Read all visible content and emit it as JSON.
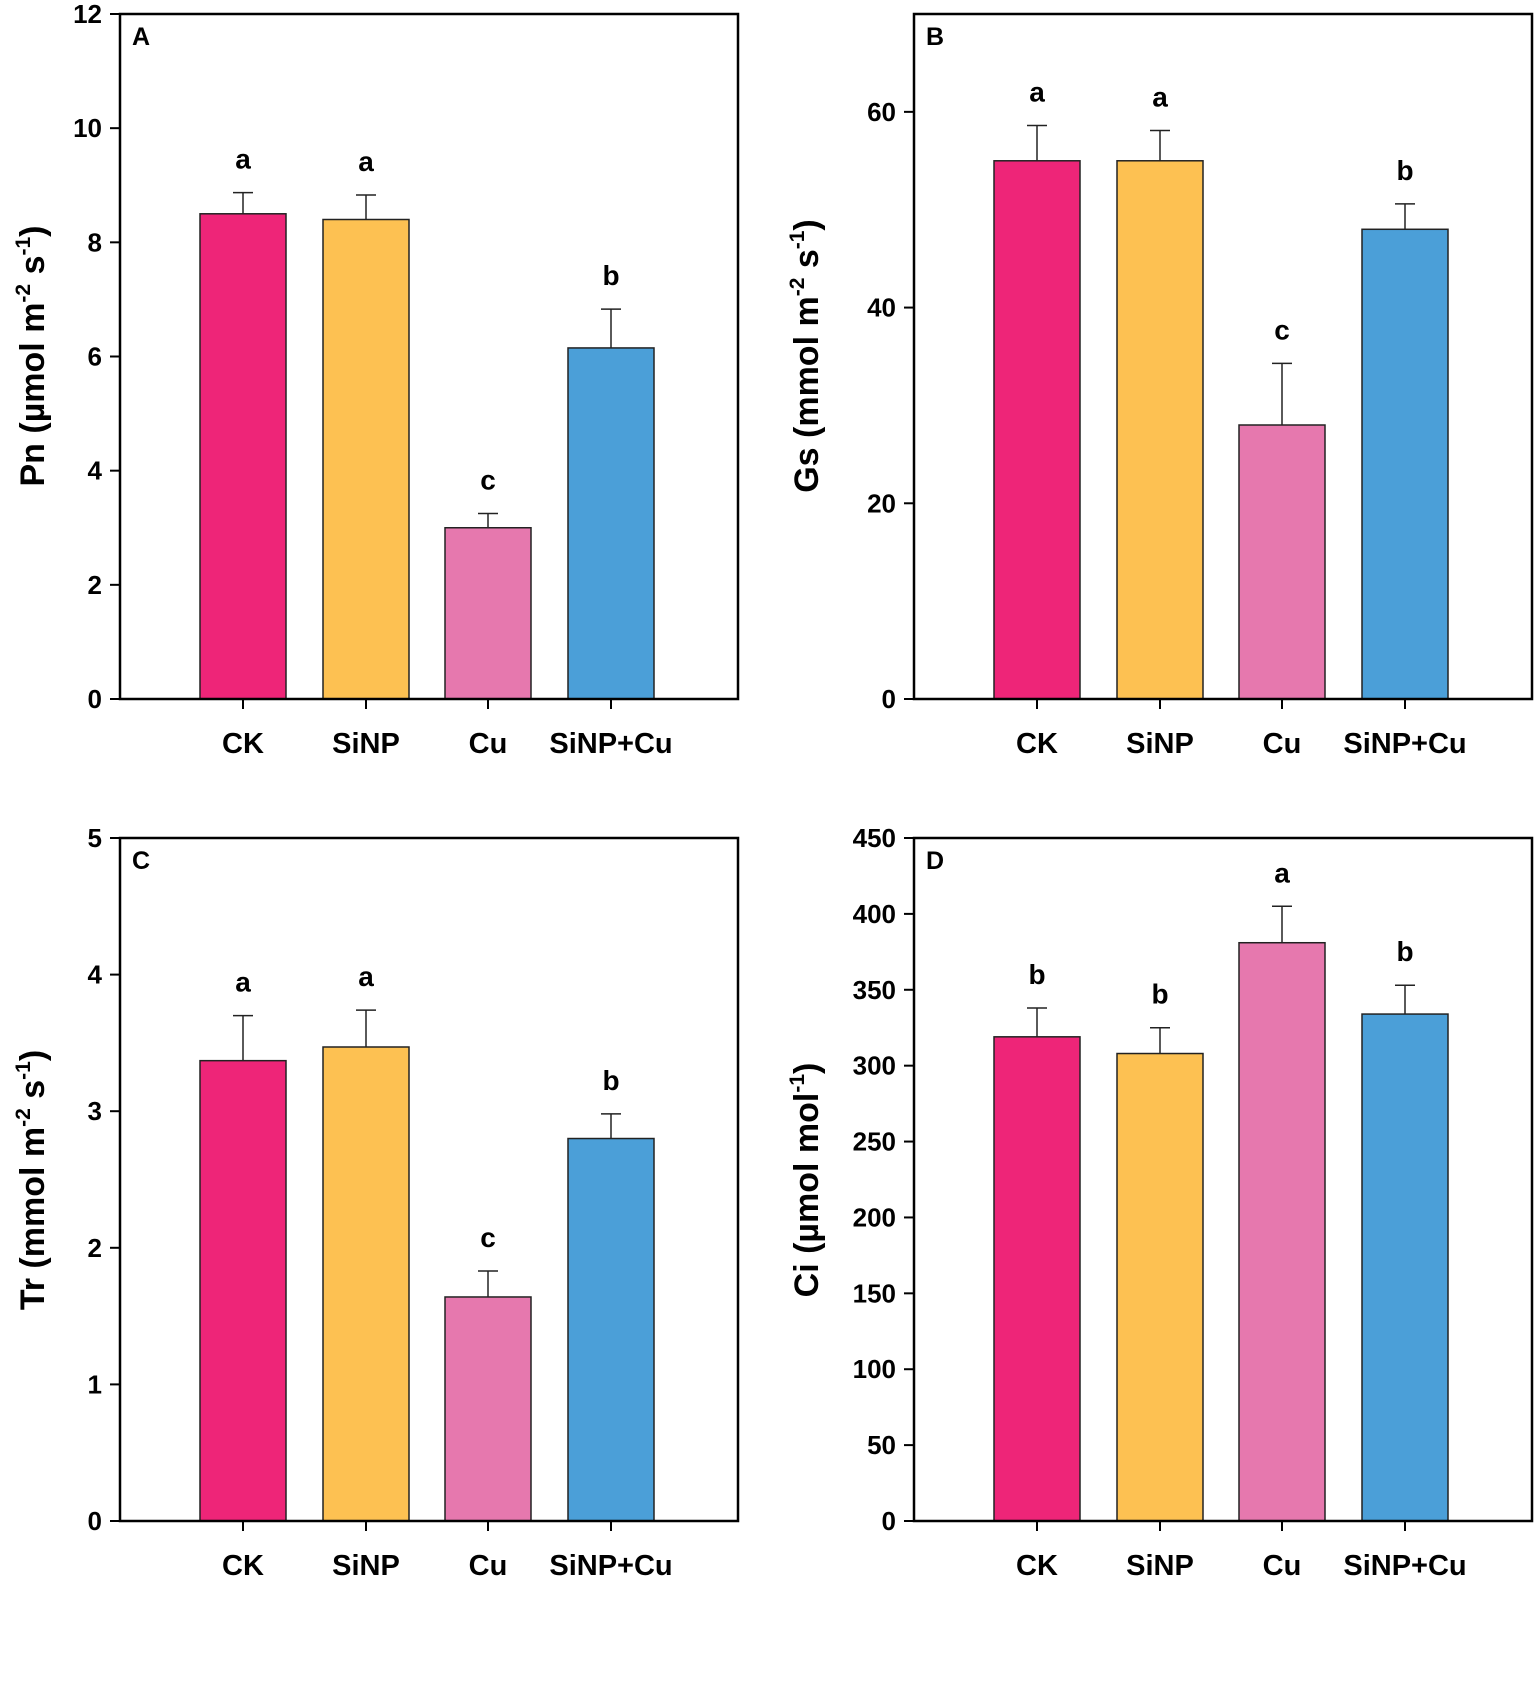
{
  "chart_data": [
    {
      "panel": "A",
      "type": "bar",
      "categories": [
        "CK",
        "SiNP",
        "Cu",
        "SiNP+Cu"
      ],
      "values": [
        8.5,
        8.4,
        3.0,
        6.15
      ],
      "errors": [
        0.37,
        0.43,
        0.25,
        0.68
      ],
      "significance": [
        "a",
        "a",
        "c",
        "b"
      ],
      "ylabel": {
        "prefix": "Pn (µmol m",
        "sup1": "-2",
        "mid": " s",
        "sup2": "-1",
        "suffix": ")"
      },
      "ylim": [
        0,
        12
      ],
      "yticks": [
        0,
        2,
        4,
        6,
        8,
        10,
        12
      ]
    },
    {
      "panel": "B",
      "type": "bar",
      "categories": [
        "CK",
        "SiNP",
        "Cu",
        "SiNP+Cu"
      ],
      "values": [
        55,
        55,
        28,
        48
      ],
      "errors": [
        3.6,
        3.1,
        6.3,
        2.6
      ],
      "significance": [
        "a",
        "a",
        "c",
        "b"
      ],
      "ylabel": {
        "prefix": "Gs (mmol m",
        "sup1": "-2",
        "mid": " s",
        "sup2": "-1",
        "suffix": ")"
      },
      "ylim": [
        0,
        70
      ],
      "yticks": [
        0,
        20,
        40,
        60
      ]
    },
    {
      "panel": "C",
      "type": "bar",
      "categories": [
        "CK",
        "SiNP",
        "Cu",
        "SiNP+Cu"
      ],
      "values": [
        3.37,
        3.47,
        1.64,
        2.8
      ],
      "errors": [
        0.33,
        0.27,
        0.19,
        0.18
      ],
      "significance": [
        "a",
        "a",
        "c",
        "b"
      ],
      "ylabel": {
        "prefix": "Tr (mmol m",
        "sup1": "-2",
        "mid": " s",
        "sup2": "-1",
        "suffix": ")"
      },
      "ylim": [
        0,
        5
      ],
      "yticks": [
        0,
        1,
        2,
        3,
        4,
        5
      ]
    },
    {
      "panel": "D",
      "type": "bar",
      "categories": [
        "CK",
        "SiNP",
        "Cu",
        "SiNP+Cu"
      ],
      "values": [
        319,
        308,
        381,
        334
      ],
      "errors": [
        19,
        17,
        24,
        19
      ],
      "significance": [
        "b",
        "b",
        "a",
        "b"
      ],
      "ylabel": {
        "prefix": "Ci (µmol mol",
        "sup1": "-1",
        "mid": "",
        "sup2": "",
        "suffix": ")"
      },
      "ylim": [
        0,
        450
      ],
      "yticks": [
        0,
        50,
        100,
        150,
        200,
        250,
        300,
        350,
        400,
        450
      ]
    }
  ],
  "bar_colors": [
    "#ee2578",
    "#fdc152",
    "#e678ae",
    "#4b9fd8"
  ]
}
